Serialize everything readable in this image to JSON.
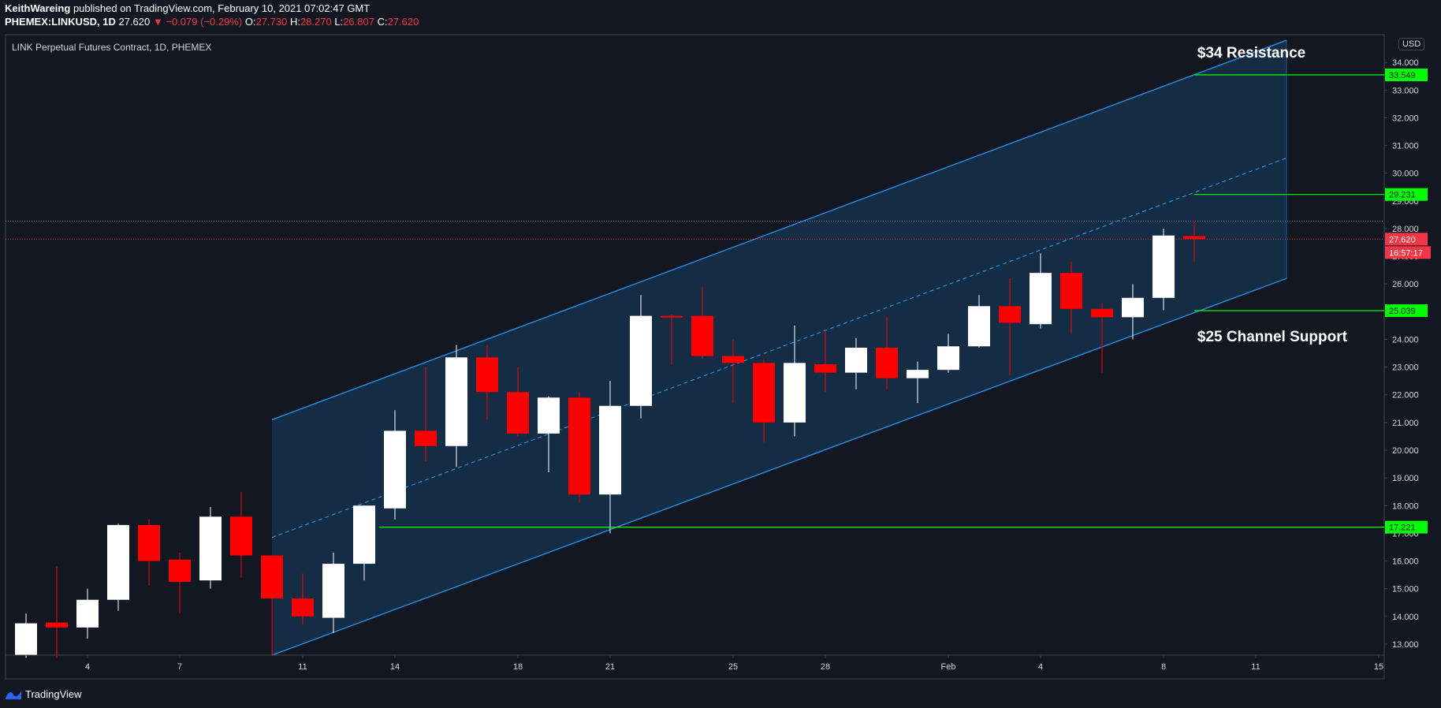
{
  "header": {
    "author": "KeithWareing",
    "published": "published on TradingView.com, February 10, 2021 07:02:47 GMT",
    "symbol": "PHEMEX:LINKUSD, 1D",
    "last": "27.620",
    "change": "▼ −0.079 (−0.29%)",
    "o_label": "O:",
    "o_val": "27.730",
    "h_label": "H:",
    "h_val": "28.270",
    "l_label": "L:",
    "l_val": "26.807",
    "c_label": "C:",
    "c_val": "27.620"
  },
  "footer": {
    "brand": "TradingView",
    "logo": "tradingview-logo-icon"
  },
  "colors": {
    "bg": "#131722",
    "up": "#ffffff",
    "down": "#ff0000",
    "channel": "#2196f3",
    "level": "#00ff00",
    "last": "#ff2a2a"
  },
  "chart_data": {
    "type": "candlestick",
    "title": "LINK Perpetual Futures Contract, 1D, PHEMEX",
    "currency": "USD",
    "ylim": [
      12.6,
      35.0
    ],
    "y_ticks": [
      "13.000",
      "14.000",
      "15.000",
      "16.000",
      "17.000",
      "18.000",
      "19.000",
      "20.000",
      "21.000",
      "22.000",
      "23.000",
      "24.000",
      "25.000",
      "26.000",
      "27.000",
      "28.000",
      "29.000",
      "30.000",
      "31.000",
      "32.000",
      "33.000",
      "34.000"
    ],
    "x_ticks": [
      {
        "label": "4",
        "day": 4
      },
      {
        "label": "7",
        "day": 7
      },
      {
        "label": "11",
        "day": 11
      },
      {
        "label": "14",
        "day": 14
      },
      {
        "label": "18",
        "day": 18
      },
      {
        "label": "21",
        "day": 21
      },
      {
        "label": "25",
        "day": 25
      },
      {
        "label": "28",
        "day": 28
      },
      {
        "label": "Feb",
        "day": 32
      },
      {
        "label": "4",
        "day": 35
      },
      {
        "label": "8",
        "day": 39
      },
      {
        "label": "11",
        "day": 42
      },
      {
        "label": "15",
        "day": 46
      }
    ],
    "candles": [
      {
        "day": 2,
        "o": 12.6,
        "h": 14.1,
        "l": 12.5,
        "c": 13.75
      },
      {
        "day": 3,
        "o": 13.78,
        "h": 15.8,
        "l": 12.5,
        "c": 13.6
      },
      {
        "day": 4,
        "o": 13.6,
        "h": 15.0,
        "l": 13.2,
        "c": 14.6
      },
      {
        "day": 5,
        "o": 14.6,
        "h": 17.35,
        "l": 14.2,
        "c": 17.3
      },
      {
        "day": 6,
        "o": 17.3,
        "h": 17.5,
        "l": 15.1,
        "c": 16.0
      },
      {
        "day": 7,
        "o": 16.05,
        "h": 16.3,
        "l": 14.1,
        "c": 15.25
      },
      {
        "day": 8,
        "o": 15.3,
        "h": 17.95,
        "l": 15.0,
        "c": 17.6
      },
      {
        "day": 9,
        "o": 17.6,
        "h": 18.5,
        "l": 15.4,
        "c": 16.2
      },
      {
        "day": 10,
        "o": 16.2,
        "h": 16.2,
        "l": 12.6,
        "c": 14.65
      },
      {
        "day": 11,
        "o": 14.65,
        "h": 15.55,
        "l": 13.7,
        "c": 14.0
      },
      {
        "day": 12,
        "o": 13.95,
        "h": 16.3,
        "l": 13.4,
        "c": 15.9
      },
      {
        "day": 13,
        "o": 15.9,
        "h": 18.0,
        "l": 15.3,
        "c": 18.0
      },
      {
        "day": 14,
        "o": 17.9,
        "h": 21.45,
        "l": 17.5,
        "c": 20.7
      },
      {
        "day": 15,
        "o": 20.7,
        "h": 23.0,
        "l": 19.6,
        "c": 20.15
      },
      {
        "day": 16,
        "o": 20.15,
        "h": 23.8,
        "l": 19.4,
        "c": 23.35
      },
      {
        "day": 17,
        "o": 23.35,
        "h": 23.8,
        "l": 21.1,
        "c": 22.1
      },
      {
        "day": 18,
        "o": 22.1,
        "h": 23.0,
        "l": 20.5,
        "c": 20.6
      },
      {
        "day": 19,
        "o": 20.6,
        "h": 21.95,
        "l": 19.2,
        "c": 21.9
      },
      {
        "day": 20,
        "o": 21.9,
        "h": 22.1,
        "l": 18.1,
        "c": 18.4
      },
      {
        "day": 21,
        "o": 18.4,
        "h": 22.5,
        "l": 17.0,
        "c": 21.6
      },
      {
        "day": 22,
        "o": 21.6,
        "h": 25.6,
        "l": 21.15,
        "c": 24.85
      },
      {
        "day": 23,
        "o": 24.85,
        "h": 24.9,
        "l": 23.1,
        "c": 24.8
      },
      {
        "day": 24,
        "o": 24.85,
        "h": 25.9,
        "l": 23.3,
        "c": 23.4
      },
      {
        "day": 25,
        "o": 23.4,
        "h": 24.0,
        "l": 21.7,
        "c": 23.15
      },
      {
        "day": 26,
        "o": 23.15,
        "h": 23.3,
        "l": 20.3,
        "c": 21.0
      },
      {
        "day": 27,
        "o": 21.0,
        "h": 24.5,
        "l": 20.5,
        "c": 23.15
      },
      {
        "day": 28,
        "o": 23.1,
        "h": 24.3,
        "l": 22.1,
        "c": 22.8
      },
      {
        "day": 29,
        "o": 22.8,
        "h": 24.05,
        "l": 22.2,
        "c": 23.7
      },
      {
        "day": 30,
        "o": 23.7,
        "h": 24.8,
        "l": 22.2,
        "c": 22.6
      },
      {
        "day": 31,
        "o": 22.6,
        "h": 23.2,
        "l": 21.7,
        "c": 22.9
      },
      {
        "day": 32,
        "o": 22.9,
        "h": 24.2,
        "l": 22.8,
        "c": 23.75
      },
      {
        "day": 33,
        "o": 23.75,
        "h": 25.6,
        "l": 23.7,
        "c": 25.2
      },
      {
        "day": 34,
        "o": 25.2,
        "h": 26.2,
        "l": 22.7,
        "c": 24.6
      },
      {
        "day": 35,
        "o": 24.55,
        "h": 27.1,
        "l": 24.4,
        "c": 26.4
      },
      {
        "day": 36,
        "o": 26.4,
        "h": 26.8,
        "l": 24.2,
        "c": 25.1
      },
      {
        "day": 37,
        "o": 25.1,
        "h": 25.3,
        "l": 22.8,
        "c": 24.8
      },
      {
        "day": 38,
        "o": 24.8,
        "h": 26.0,
        "l": 24.0,
        "c": 25.5
      },
      {
        "day": 39,
        "o": 25.5,
        "h": 28.0,
        "l": 25.05,
        "c": 27.75
      },
      {
        "day": 40,
        "o": 27.73,
        "h": 28.27,
        "l": 26.807,
        "c": 27.62
      }
    ],
    "channel": {
      "start_day": 10,
      "end_day": 43,
      "upper_start": 21.1,
      "upper_end": 34.8,
      "lower_start": 12.6,
      "lower_end": 26.2,
      "mid_start": 16.85,
      "mid_end": 30.55
    },
    "levels": [
      {
        "value": 33.549,
        "label": "33.549",
        "start_day": 40
      },
      {
        "value": 29.231,
        "label": "29.231",
        "start_day": 40
      },
      {
        "value": 25.039,
        "label": "25.039",
        "start_day": 40
      },
      {
        "value": 17.221,
        "label": "17.221",
        "start_day": 13.5
      }
    ],
    "last_price": {
      "value": 27.62,
      "label": "27.620",
      "countdown": "16:57:17"
    },
    "high_line": 28.27,
    "annotations": [
      {
        "text": "$34 Resistance",
        "day": 40.1,
        "price": 34.35
      },
      {
        "text": "$25 Channel Support",
        "day": 40.1,
        "price": 24.1
      }
    ]
  }
}
